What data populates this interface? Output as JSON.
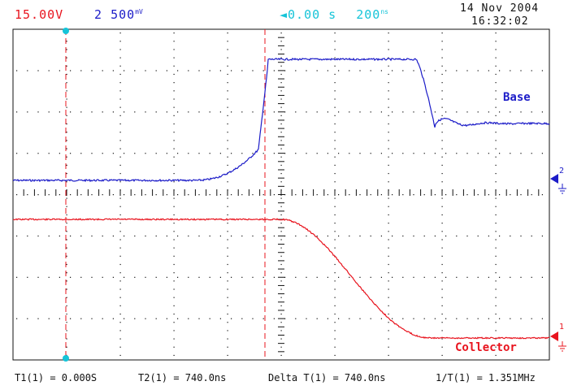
{
  "header": {
    "ch1_scale": "15.00V",
    "ch2_index": "2",
    "ch2_scale": "500",
    "ch2_unit": "mV",
    "trigger_arrow": "◄",
    "time_offset": "0.00 s",
    "time_scale": "200",
    "time_unit": "ns",
    "date": "14 Nov 2004",
    "time": "16:32:02"
  },
  "labels": {
    "base": "Base",
    "collector": "Collector",
    "marker_ch2": "2",
    "marker_ch1": "1"
  },
  "footer": {
    "t1": "T1(1) = 0.000S",
    "t2": "T2(1) = 740.0ns",
    "delta": "Delta T(1) = 740.0ns",
    "inv": "1/T(1) = 1.351MHz"
  },
  "colors": {
    "ch1": "#e8141e",
    "ch2": "#1c1cc8",
    "cursor": "#16c4d8",
    "grid": "#111111"
  }
}
